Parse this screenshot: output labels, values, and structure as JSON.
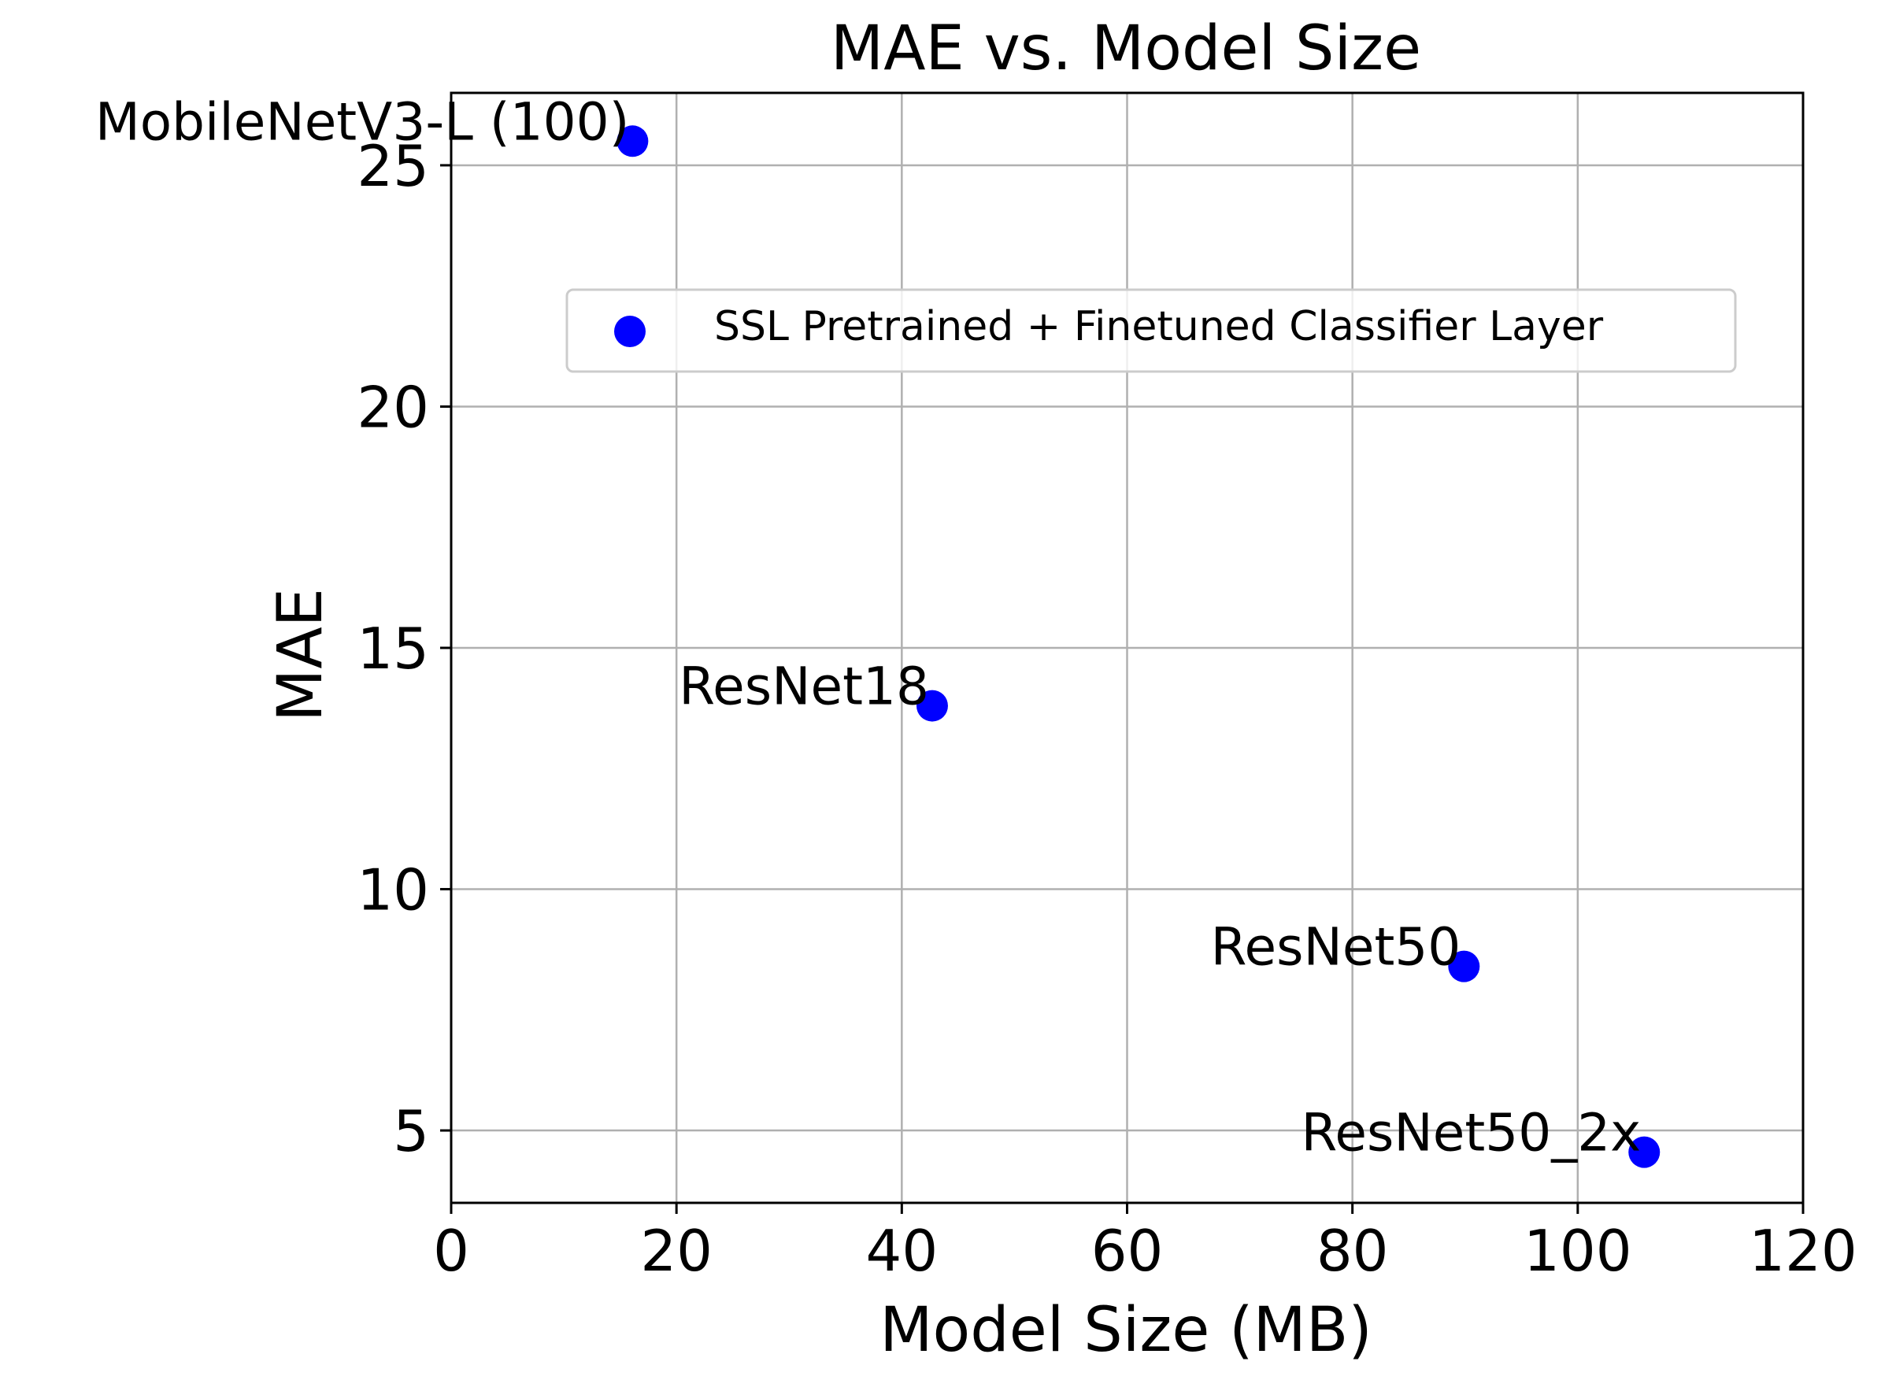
{
  "chart_data": {
    "type": "scatter",
    "title": "MAE vs. Model Size",
    "xlabel": "Model Size (MB)",
    "ylabel": "MAE",
    "xlim": [
      0,
      120
    ],
    "ylim": [
      3.5,
      26.5
    ],
    "xticks": [
      0,
      20,
      40,
      60,
      80,
      100,
      120
    ],
    "yticks": [
      5,
      10,
      15,
      20,
      25
    ],
    "grid": true,
    "legend_position": "upper-right",
    "series": [
      {
        "name": "SSL Pretrained + Finetuned Classifier Layer",
        "color": "#0000ff",
        "points": [
          {
            "label": "MobileNetV3-L (100)",
            "x": 16.1,
            "y": 25.5
          },
          {
            "label": "ResNet18",
            "x": 42.7,
            "y": 13.8
          },
          {
            "label": "ResNet50",
            "x": 89.9,
            "y": 8.4
          },
          {
            "label": "ResNet50_2x",
            "x": 105.9,
            "y": 4.55
          }
        ]
      }
    ]
  }
}
